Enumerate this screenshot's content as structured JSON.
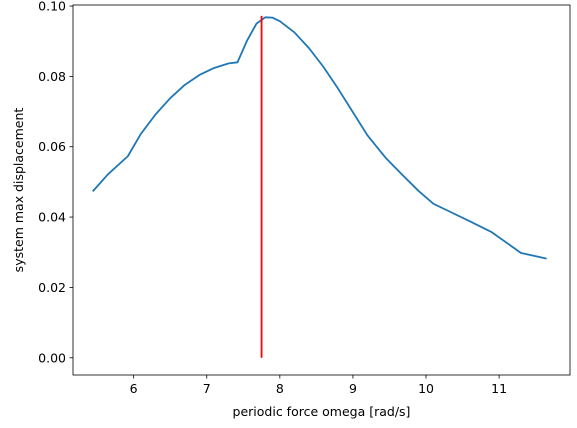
{
  "chart_data": {
    "type": "line",
    "title": "",
    "xlabel": "periodic force omega [rad/s]",
    "ylabel": "system max displacement",
    "xlim": [
      5.17,
      11.97
    ],
    "ylim": [
      -0.0049,
      0.1003
    ],
    "xticks": [
      6,
      7,
      8,
      9,
      10,
      11
    ],
    "yticks": [
      0.0,
      0.02,
      0.04,
      0.06,
      0.08,
      0.1
    ],
    "xtick_labels": [
      "6",
      "7",
      "8",
      "9",
      "10",
      "11"
    ],
    "ytick_labels": [
      "0.00",
      "0.02",
      "0.04",
      "0.06",
      "0.08",
      "0.10"
    ],
    "grid": false,
    "legend": "none",
    "series": [
      {
        "color": "#1f77b4",
        "x": [
          5.44,
          5.65,
          5.92,
          6.1,
          6.3,
          6.5,
          6.7,
          6.9,
          7.1,
          7.3,
          7.42,
          7.55,
          7.68,
          7.8,
          7.9,
          8.0,
          8.2,
          8.4,
          8.6,
          8.8,
          9.0,
          9.2,
          9.45,
          9.7,
          9.9,
          10.1,
          10.3,
          10.6,
          10.9,
          11.3,
          11.65
        ],
        "y": [
          0.0473,
          0.0522,
          0.0573,
          0.0637,
          0.0692,
          0.0738,
          0.0776,
          0.0804,
          0.0824,
          0.0837,
          0.084,
          0.0901,
          0.095,
          0.0968,
          0.0967,
          0.0957,
          0.0925,
          0.088,
          0.0826,
          0.0764,
          0.0698,
          0.0632,
          0.0568,
          0.0515,
          0.0474,
          0.0438,
          0.0418,
          0.0388,
          0.0357,
          0.0298,
          0.0282
        ]
      },
      {
        "color": "#ff0000",
        "x": [
          7.75,
          7.75
        ],
        "y": [
          0.0,
          0.0972
        ]
      }
    ]
  }
}
